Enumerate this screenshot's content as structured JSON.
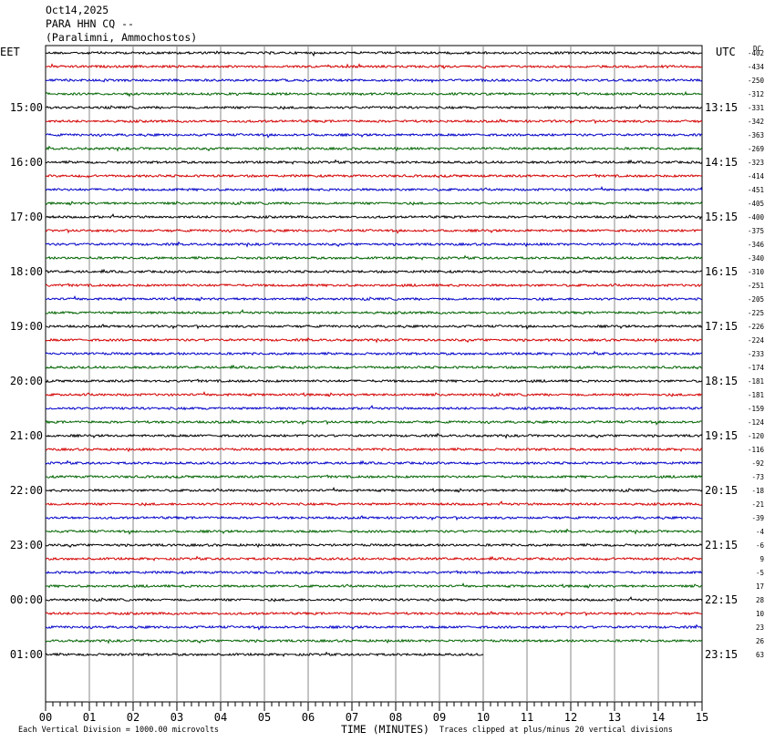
{
  "header": {
    "date": "Oct14,2025",
    "station": "PARA HHN CQ --",
    "location": "(Paralimni, Ammochostos)"
  },
  "chart_data": {
    "type": "line",
    "left_zone_label": "EET",
    "right_zone_label": "UTC",
    "dc_label": "DC",
    "left_hour_labels": [
      "15:00",
      "16:00",
      "17:00",
      "18:00",
      "19:00",
      "20:00",
      "21:00",
      "22:00",
      "23:00",
      "00:00",
      "01:00"
    ],
    "right_hour_labels": [
      "13:15",
      "14:15",
      "15:15",
      "16:15",
      "17:15",
      "18:15",
      "19:15",
      "20:15",
      "21:15",
      "22:15",
      "23:15"
    ],
    "dc_offsets": [
      -402,
      -434,
      -250,
      -312,
      -331,
      -342,
      -363,
      -269,
      -323,
      -414,
      -451,
      -405,
      -400,
      -375,
      -346,
      -340,
      -310,
      -251,
      -205,
      -225,
      -226,
      -224,
      -233,
      -174,
      -181,
      -181,
      -159,
      -124,
      -120,
      -116,
      -92,
      -73,
      -18,
      -21,
      -39,
      -4,
      -6,
      9,
      -5,
      17,
      28,
      10,
      23,
      26,
      63
    ],
    "trace_colors": [
      "#000000",
      "#d40000",
      "#0000c8",
      "#006400"
    ],
    "last_trace_end_minute": 10,
    "x_tick_labels": [
      "00",
      "01",
      "02",
      "03",
      "04",
      "05",
      "06",
      "07",
      "08",
      "09",
      "10",
      "11",
      "12",
      "13",
      "14",
      "15"
    ],
    "xlim": [
      0,
      15
    ],
    "xlabel": "TIME (MINUTES)",
    "footer_left": "Each Vertical Division = 1000.00 microvolts",
    "footer_right": "Traces clipped at plus/minus 20 vertical divisions",
    "grid": true
  }
}
